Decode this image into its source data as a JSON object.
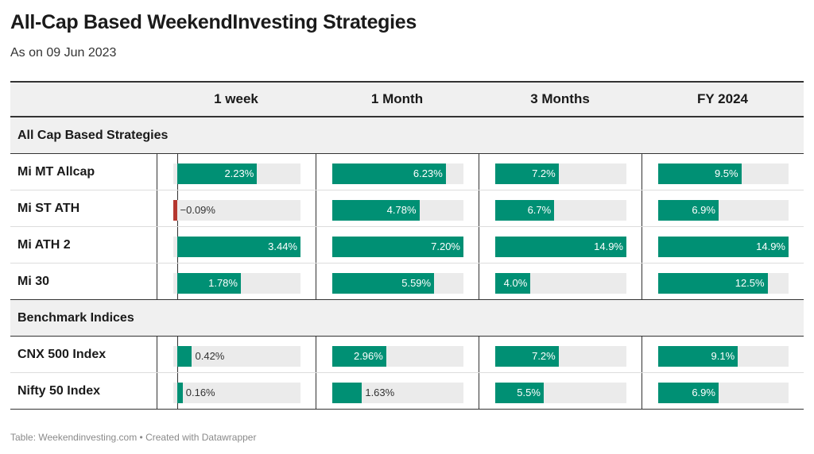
{
  "title": "All-Cap Based WeekendInvesting Strategies",
  "subtitle": "As on 09 Jun 2023",
  "footer": "Table: Weekendinvesting.com • Created with Datawrapper",
  "colors": {
    "positive": "#009074",
    "negative": "#b5372f",
    "track": "#ebebeb"
  },
  "chart_data": {
    "type": "table",
    "columns": [
      "",
      "1 week",
      "1 Month",
      "3 Months",
      "FY 2024"
    ],
    "scales": {
      "min": [
        -0.1,
        0,
        0,
        0
      ],
      "max": [
        3.44,
        7.2,
        14.9,
        14.9
      ]
    },
    "groups": [
      {
        "label": "All Cap Based Strategies",
        "rows": [
          {
            "name": "Mi MT Allcap",
            "values": [
              2.23,
              6.23,
              7.2,
              9.5
            ],
            "labels": [
              "2.23%",
              "6.23%",
              "7.2%",
              "9.5%"
            ]
          },
          {
            "name": "Mi ST ATH",
            "values": [
              -0.09,
              4.78,
              6.7,
              6.9
            ],
            "labels": [
              "−0.09%",
              "4.78%",
              "6.7%",
              "6.9%"
            ]
          },
          {
            "name": "Mi ATH 2",
            "values": [
              3.44,
              7.2,
              14.9,
              14.9
            ],
            "labels": [
              "3.44%",
              "7.20%",
              "14.9%",
              "14.9%"
            ]
          },
          {
            "name": "Mi 30",
            "values": [
              1.78,
              5.59,
              4.0,
              12.5
            ],
            "labels": [
              "1.78%",
              "5.59%",
              "4.0%",
              "12.5%"
            ]
          }
        ]
      },
      {
        "label": "Benchmark Indices",
        "rows": [
          {
            "name": "CNX 500 Index",
            "values": [
              0.42,
              2.96,
              7.2,
              9.1
            ],
            "labels": [
              "0.42%",
              "2.96%",
              "7.2%",
              "9.1%"
            ]
          },
          {
            "name": "Nifty 50 Index",
            "values": [
              0.16,
              1.63,
              5.5,
              6.9
            ],
            "labels": [
              "0.16%",
              "1.63%",
              "5.5%",
              "6.9%"
            ]
          }
        ]
      }
    ]
  }
}
